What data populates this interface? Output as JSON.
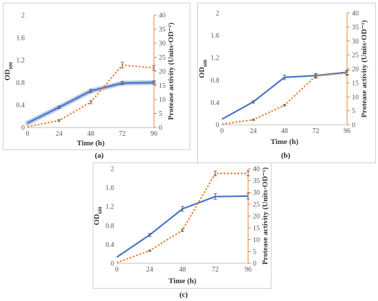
{
  "figure": {
    "panel_labels": [
      "(a)",
      "(b)",
      "(c)"
    ]
  },
  "chart_data": [
    {
      "type": "line",
      "panel": "(a)",
      "x": [
        0,
        24,
        48,
        72,
        96
      ],
      "xlabel": "Time (h)",
      "ylabel_left_main": "OD",
      "ylabel_left_sub": "600",
      "ylabel_right": "Protease activity (Units·OD⁻¹)",
      "xticks": [
        "0",
        "24",
        "48",
        "72",
        "96"
      ],
      "ylim_left": [
        0,
        2
      ],
      "yticks_left": [
        "0",
        "0.4",
        "0.8",
        "1.2",
        "1.6",
        "2"
      ],
      "ylim_right": [
        0,
        40
      ],
      "yticks_right": [
        "0",
        "5",
        "10",
        "15",
        "20",
        "25",
        "30",
        "35",
        "40"
      ],
      "grid": false,
      "series": [
        {
          "axis": "left",
          "style": "solid",
          "color": "#4472C4",
          "values": [
            0.08,
            0.36,
            0.65,
            0.79,
            0.8
          ],
          "errors": [
            0,
            0.02,
            0.03,
            0.03,
            0.03
          ]
        },
        {
          "axis": "right",
          "style": "dotted",
          "color": "#ED7D31",
          "values": [
            0.3,
            2.5,
            9.0,
            22.2,
            21.2
          ],
          "errors": [
            0,
            0.3,
            0.5,
            1.0,
            0.8
          ]
        }
      ]
    },
    {
      "type": "line",
      "panel": "(b)",
      "x": [
        0,
        24,
        48,
        72,
        96
      ],
      "xlabel": "Time (h)",
      "ylabel_left_main": "OD",
      "ylabel_left_sub": "600",
      "ylabel_right": "Protease activity (Units·OD⁻¹)",
      "xticks": [
        "0",
        "24",
        "48",
        "72",
        "96"
      ],
      "ylim_left": [
        0,
        2
      ],
      "yticks_left": [
        "0",
        "0.4",
        "0.8",
        "1.2",
        "1.6",
        "2"
      ],
      "ylim_right": [
        0,
        40
      ],
      "yticks_right": [
        "0",
        "5",
        "10",
        "15",
        "20",
        "25",
        "30",
        "35",
        "40"
      ],
      "grid": false,
      "series": [
        {
          "axis": "left",
          "style": "solid",
          "color": "#4472C4",
          "values": [
            0.1,
            0.41,
            0.85,
            0.88,
            0.94
          ],
          "errors": [
            0,
            0.02,
            0.04,
            0.03,
            0.04
          ]
        },
        {
          "axis": "right",
          "style": "dotted",
          "color": "#ED7D31",
          "values": [
            0.2,
            1.8,
            7.0,
            17.5,
            18.5
          ],
          "errors": [
            0,
            0.2,
            0.3,
            0.8,
            0.8
          ]
        }
      ]
    },
    {
      "type": "line",
      "panel": "(c)",
      "x": [
        0,
        24,
        48,
        72,
        96
      ],
      "xlabel": "Time (h)",
      "ylabel_left_main": "OD",
      "ylabel_left_sub": "600",
      "ylabel_right": "Protease activity (Units·OD⁻¹)",
      "xticks": [
        "0",
        "24",
        "48",
        "72",
        "96"
      ],
      "ylim_left": [
        0,
        2
      ],
      "yticks_left": [
        "0",
        "0.4",
        "0.8",
        "1.2",
        "1.6",
        "2"
      ],
      "ylim_right": [
        0,
        40
      ],
      "yticks_right": [
        "0",
        "5",
        "10",
        "15",
        "20",
        "25",
        "30",
        "35",
        "40"
      ],
      "grid": false,
      "series": [
        {
          "axis": "left",
          "style": "solid",
          "color": "#4472C4",
          "values": [
            0.13,
            0.6,
            1.15,
            1.41,
            1.42
          ],
          "errors": [
            0,
            0.03,
            0.05,
            0.06,
            0.06
          ]
        },
        {
          "axis": "right",
          "style": "dotted",
          "color": "#ED7D31",
          "values": [
            0.3,
            5.3,
            14.0,
            38.0,
            38.0
          ],
          "errors": [
            0,
            0.3,
            0.5,
            1.0,
            1.0
          ]
        }
      ]
    }
  ]
}
